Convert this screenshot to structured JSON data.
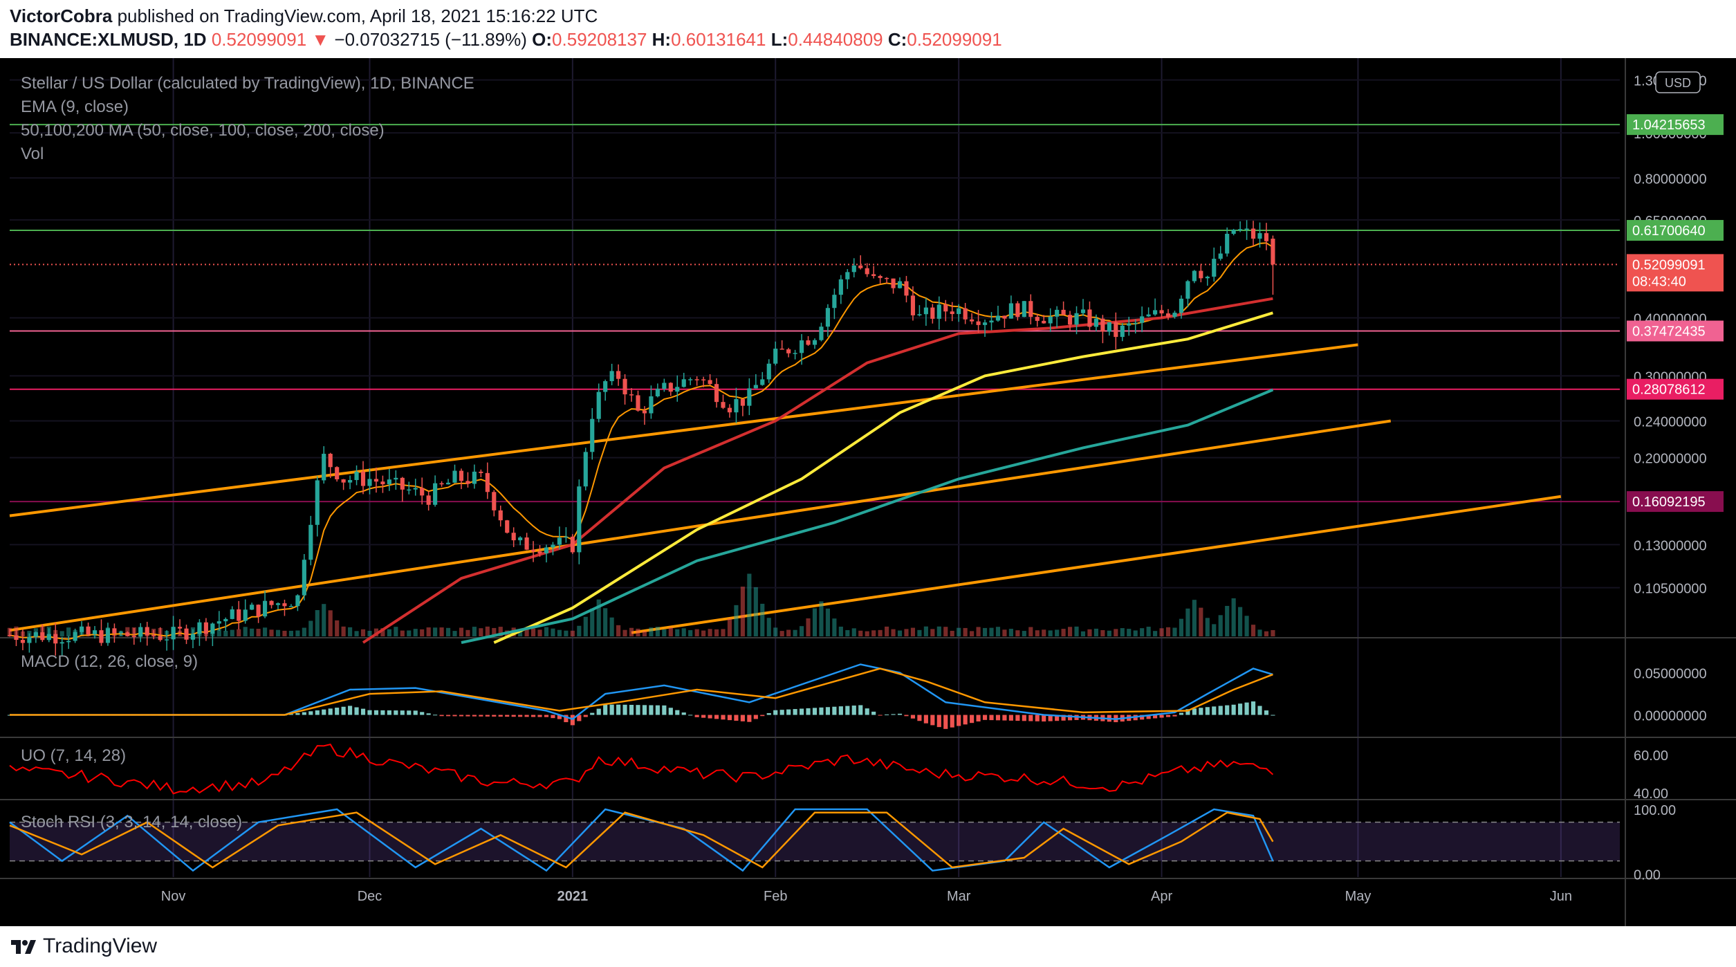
{
  "header": {
    "author": "VictorCobra",
    "published_text": "published on TradingView.com, April 18, 2021 15:16:22 UTC",
    "symbol": "BINANCE:XLMUSD, 1D",
    "last": "0.52099091",
    "change_arrow": "▼",
    "change": "−0.07032715 (−11.89%)",
    "o_label": "O:",
    "o_value": "0.59208137",
    "h_label": "H:",
    "h_value": "0.60131641",
    "l_label": "L:",
    "l_value": "0.44840809",
    "c_label": "C:",
    "c_value": "0.52099091"
  },
  "legend": {
    "title": "Stellar / US Dollar (calculated by TradingView), 1D, BINANCE",
    "ema": "EMA (9, close)",
    "ma": "50,100,200 MA (50, close, 100, close, 200, close)",
    "vol": "Vol",
    "macd": "MACD (12, 26, close, 9)",
    "uo": "UO (7, 14, 28)",
    "stoch": "Stoch RSI (3, 3, 14, 14, close)"
  },
  "footer": {
    "brand": "TradingView",
    "logo_icon": "tradingview-logo-icon"
  },
  "colors": {
    "background": "#000000",
    "up": "#26a69a",
    "down": "#ef5350",
    "ema": "#ff9800",
    "ma50": "#d32f2f",
    "ma100": "#ffeb3b",
    "ma200": "#26a69a",
    "trendline": "#ff9800",
    "macd": "#2196f3",
    "signal": "#ff9800",
    "uo": "#ff0000",
    "stoch_k": "#2196f3",
    "stoch_d": "#ff9800"
  },
  "chart_data": {
    "type": "candlestick",
    "currency_badge": "USD",
    "price_axis": {
      "scale": "log",
      "ticks": [
        "1.30000000",
        "1.00000000",
        "0.80000000",
        "0.65000000",
        "0.40000000",
        "0.30000000",
        "0.24000000",
        "0.20000000",
        "0.13000000",
        "0.10500000"
      ],
      "badges": [
        {
          "value": "1.04215653",
          "color": "#4caf50"
        },
        {
          "value": "0.61700640",
          "color": "#4caf50"
        },
        {
          "value": "0.52099091",
          "color": "#ef5350",
          "countdown": "08:43:40"
        },
        {
          "value": "0.37472435",
          "color": "#f06292"
        },
        {
          "value": "0.28078612",
          "color": "#e91e63"
        },
        {
          "value": "0.16092195",
          "color": "#880e4f"
        }
      ]
    },
    "horizontal_lines": [
      {
        "value": 1.04215653,
        "color": "#4caf50"
      },
      {
        "value": 0.6170064,
        "color": "#4caf50"
      },
      {
        "value": 0.37472435,
        "color": "#f06292"
      },
      {
        "value": 0.28078612,
        "color": "#e91e63"
      },
      {
        "value": 0.16092195,
        "color": "#880e4f"
      }
    ],
    "time_axis": [
      "Nov",
      "Dec",
      "2021",
      "Feb",
      "Mar",
      "Apr",
      "May",
      "Jun"
    ],
    "close_anchors": [
      [
        "2020-10-07",
        0.083
      ],
      [
        "2020-11-01",
        0.083
      ],
      [
        "2020-11-20",
        0.1
      ],
      [
        "2020-11-24",
        0.2
      ],
      [
        "2020-11-27",
        0.18
      ],
      [
        "2020-12-01",
        0.18
      ],
      [
        "2020-12-10",
        0.165
      ],
      [
        "2020-12-14",
        0.18
      ],
      [
        "2020-12-18",
        0.18
      ],
      [
        "2020-12-23",
        0.13
      ],
      [
        "2020-12-29",
        0.13
      ],
      [
        "2021-01-01",
        0.13
      ],
      [
        "2021-01-04",
        0.25
      ],
      [
        "2021-01-06",
        0.29
      ],
      [
        "2021-01-08",
        0.3
      ],
      [
        "2021-01-11",
        0.25
      ],
      [
        "2021-01-15",
        0.28
      ],
      [
        "2021-01-20",
        0.3
      ],
      [
        "2021-01-25",
        0.26
      ],
      [
        "2021-01-28",
        0.27
      ],
      [
        "2021-02-01",
        0.33
      ],
      [
        "2021-02-07",
        0.37
      ],
      [
        "2021-02-13",
        0.53
      ],
      [
        "2021-02-16",
        0.48
      ],
      [
        "2021-02-20",
        0.47
      ],
      [
        "2021-02-23",
        0.4
      ],
      [
        "2021-02-28",
        0.42
      ],
      [
        "2021-03-05",
        0.4
      ],
      [
        "2021-03-10",
        0.42
      ],
      [
        "2021-03-15",
        0.4
      ],
      [
        "2021-03-20",
        0.4
      ],
      [
        "2021-03-25",
        0.37
      ],
      [
        "2021-03-30",
        0.4
      ],
      [
        "2021-04-03",
        0.42
      ],
      [
        "2021-04-06",
        0.52
      ],
      [
        "2021-04-08",
        0.49
      ],
      [
        "2021-04-10",
        0.55
      ],
      [
        "2021-04-12",
        0.62
      ],
      [
        "2021-04-15",
        0.6
      ],
      [
        "2021-04-17",
        0.59
      ],
      [
        "2021-04-18",
        0.52099091
      ]
    ],
    "moving_averages": {
      "ma50": [
        [
          "2020-11-30",
          0.08
        ],
        [
          "2020-12-15",
          0.11
        ],
        [
          "2021-01-01",
          0.13
        ],
        [
          "2021-01-15",
          0.19
        ],
        [
          "2021-02-01",
          0.24
        ],
        [
          "2021-02-15",
          0.32
        ],
        [
          "2021-03-01",
          0.37
        ],
        [
          "2021-03-15",
          0.38
        ],
        [
          "2021-04-01",
          0.4
        ],
        [
          "2021-04-18",
          0.44
        ]
      ],
      "ma100": [
        [
          "2020-12-20",
          0.08
        ],
        [
          "2021-01-01",
          0.095
        ],
        [
          "2021-01-20",
          0.14
        ],
        [
          "2021-02-05",
          0.18
        ],
        [
          "2021-02-20",
          0.25
        ],
        [
          "2021-03-05",
          0.3
        ],
        [
          "2021-03-20",
          0.33
        ],
        [
          "2021-04-05",
          0.36
        ],
        [
          "2021-04-18",
          0.41
        ]
      ],
      "ma200": [
        [
          "2020-12-15",
          0.08
        ],
        [
          "2021-01-01",
          0.09
        ],
        [
          "2021-01-20",
          0.12
        ],
        [
          "2021-02-10",
          0.145
        ],
        [
          "2021-03-01",
          0.18
        ],
        [
          "2021-03-20",
          0.21
        ],
        [
          "2021-04-05",
          0.235
        ],
        [
          "2021-04-18",
          0.28
        ]
      ]
    },
    "trendlines": [
      {
        "from": [
          "2020-10-07",
          0.15
        ],
        "to": [
          "2021-05-01",
          0.35
        ]
      },
      {
        "from": [
          "2020-10-07",
          0.085
        ],
        "to": [
          "2021-05-06",
          0.24
        ]
      },
      {
        "from": [
          "2021-01-10",
          0.084
        ],
        "to": [
          "2021-06-01",
          0.165
        ]
      }
    ],
    "volume_peaks": [
      [
        "2020-11-24",
        0.5
      ],
      [
        "2021-01-05",
        0.55
      ],
      [
        "2021-01-28",
        1.0
      ],
      [
        "2021-02-08",
        0.55
      ],
      [
        "2021-04-06",
        0.55
      ],
      [
        "2021-04-12",
        0.6
      ]
    ],
    "macd": {
      "ticks": [
        "0.05000000",
        "0.00000000"
      ],
      "macd": [
        [
          "2020-10-07",
          0
        ],
        [
          "2020-11-18",
          0
        ],
        [
          "2020-11-28",
          0.03
        ],
        [
          "2020-12-08",
          0.032
        ],
        [
          "2020-12-28",
          0.005
        ],
        [
          "2021-01-01",
          -0.005
        ],
        [
          "2021-01-06",
          0.025
        ],
        [
          "2021-01-15",
          0.035
        ],
        [
          "2021-01-28",
          0.015
        ],
        [
          "2021-02-14",
          0.06
        ],
        [
          "2021-02-20",
          0.05
        ],
        [
          "2021-02-27",
          0.015
        ],
        [
          "2021-03-14",
          0.0
        ],
        [
          "2021-03-25",
          -0.005
        ],
        [
          "2021-04-03",
          0.003
        ],
        [
          "2021-04-08",
          0.025
        ],
        [
          "2021-04-15",
          0.055
        ],
        [
          "2021-04-18",
          0.048
        ]
      ],
      "signal": [
        [
          "2020-10-07",
          0
        ],
        [
          "2020-11-18",
          0
        ],
        [
          "2020-12-01",
          0.025
        ],
        [
          "2020-12-12",
          0.028
        ],
        [
          "2020-12-30",
          0.005
        ],
        [
          "2021-01-08",
          0.015
        ],
        [
          "2021-01-20",
          0.03
        ],
        [
          "2021-02-01",
          0.02
        ],
        [
          "2021-02-17",
          0.055
        ],
        [
          "2021-02-24",
          0.04
        ],
        [
          "2021-03-05",
          0.015
        ],
        [
          "2021-03-20",
          0.003
        ],
        [
          "2021-04-05",
          0.005
        ],
        [
          "2021-04-12",
          0.03
        ],
        [
          "2021-04-18",
          0.048
        ]
      ]
    },
    "uo": {
      "ticks": [
        "60.00",
        "40.00"
      ],
      "values": [
        [
          "2020-10-07",
          52
        ],
        [
          "2020-10-20",
          48
        ],
        [
          "2020-11-01",
          42
        ],
        [
          "2020-11-15",
          45
        ],
        [
          "2020-11-24",
          64
        ],
        [
          "2020-12-05",
          55
        ],
        [
          "2020-12-20",
          45
        ],
        [
          "2021-01-01",
          45
        ],
        [
          "2021-01-05",
          58
        ],
        [
          "2021-01-20",
          50
        ],
        [
          "2021-01-28",
          48
        ],
        [
          "2021-02-12",
          58
        ],
        [
          "2021-02-25",
          50
        ],
        [
          "2021-03-10",
          48
        ],
        [
          "2021-03-25",
          43
        ],
        [
          "2021-04-05",
          52
        ],
        [
          "2021-04-12",
          55
        ],
        [
          "2021-04-18",
          52
        ]
      ]
    },
    "stoch_rsi": {
      "ticks": [
        "100.00",
        "0.00"
      ],
      "k": [
        [
          "2020-10-07",
          80
        ],
        [
          "2020-10-15",
          20
        ],
        [
          "2020-10-25",
          90
        ],
        [
          "2020-11-04",
          5
        ],
        [
          "2020-11-14",
          80
        ],
        [
          "2020-11-26",
          100
        ],
        [
          "2020-12-08",
          10
        ],
        [
          "2020-12-18",
          70
        ],
        [
          "2020-12-28",
          5
        ],
        [
          "2021-01-06",
          100
        ],
        [
          "2021-01-18",
          70
        ],
        [
          "2021-01-27",
          5
        ],
        [
          "2021-02-04",
          100
        ],
        [
          "2021-02-15",
          100
        ],
        [
          "2021-02-25",
          5
        ],
        [
          "2021-03-08",
          20
        ],
        [
          "2021-03-14",
          80
        ],
        [
          "2021-03-24",
          10
        ],
        [
          "2021-04-02",
          60
        ],
        [
          "2021-04-09",
          100
        ],
        [
          "2021-04-15",
          90
        ],
        [
          "2021-04-18",
          20
        ]
      ],
      "d": [
        [
          "2020-10-07",
          75
        ],
        [
          "2020-10-18",
          30
        ],
        [
          "2020-10-28",
          80
        ],
        [
          "2020-11-07",
          10
        ],
        [
          "2020-11-17",
          75
        ],
        [
          "2020-11-29",
          95
        ],
        [
          "2020-12-11",
          15
        ],
        [
          "2020-12-21",
          60
        ],
        [
          "2020-12-31",
          10
        ],
        [
          "2021-01-09",
          95
        ],
        [
          "2021-01-21",
          60
        ],
        [
          "2021-01-30",
          10
        ],
        [
          "2021-02-07",
          95
        ],
        [
          "2021-02-18",
          95
        ],
        [
          "2021-02-28",
          10
        ],
        [
          "2021-03-11",
          25
        ],
        [
          "2021-03-17",
          70
        ],
        [
          "2021-03-27",
          15
        ],
        [
          "2021-04-04",
          50
        ],
        [
          "2021-04-11",
          95
        ],
        [
          "2021-04-16",
          85
        ],
        [
          "2021-04-18",
          50
        ]
      ]
    }
  }
}
